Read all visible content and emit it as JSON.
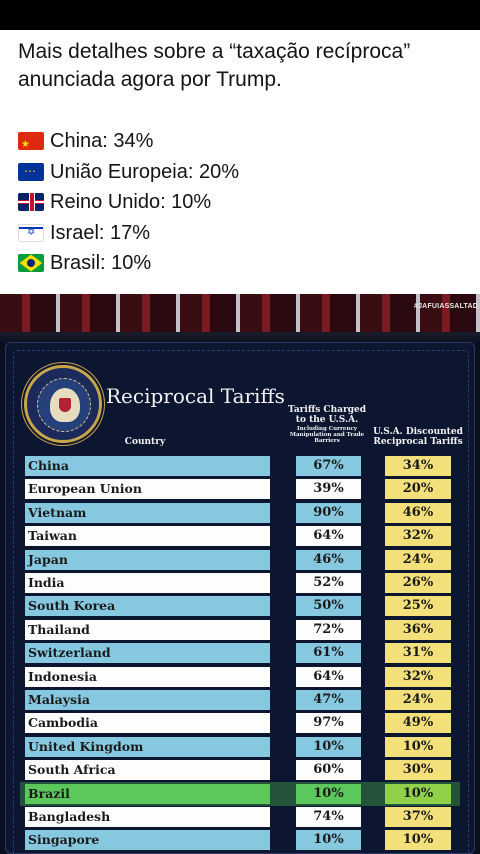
{
  "post": {
    "text": "Mais detalhes sobre a “taxação recíproca” anunciada agora por Trump.",
    "items": [
      {
        "flag": "china-flag-icon",
        "label": "China: 34%"
      },
      {
        "flag": "eu-flag-icon",
        "label": "União Europeia: 20%"
      },
      {
        "flag": "uk-flag-icon",
        "label": "Reino Unido: 10%"
      },
      {
        "flag": "israel-flag-icon",
        "label": "Israel: 17%"
      },
      {
        "flag": "brazil-flag-icon",
        "label": "Brasil: 10%"
      }
    ]
  },
  "video": {
    "watermark": "#JAFUIASSALTAD",
    "board": {
      "title": "Reciprocal Tariffs",
      "headers": {
        "country": "Country",
        "charged_main": "Tariffs Charged to the U.S.A.",
        "charged_sub": "Including Currency Manipulation and Trade Barriers",
        "discounted": "U.S.A. Discounted Reciprocal Tariffs"
      },
      "rows": [
        {
          "country": "China",
          "charged": "67%",
          "discounted": "34%"
        },
        {
          "country": "European Union",
          "charged": "39%",
          "discounted": "20%"
        },
        {
          "country": "Vietnam",
          "charged": "90%",
          "discounted": "46%"
        },
        {
          "country": "Taiwan",
          "charged": "64%",
          "discounted": "32%"
        },
        {
          "country": "Japan",
          "charged": "46%",
          "discounted": "24%"
        },
        {
          "country": "India",
          "charged": "52%",
          "discounted": "26%"
        },
        {
          "country": "South Korea",
          "charged": "50%",
          "discounted": "25%"
        },
        {
          "country": "Thailand",
          "charged": "72%",
          "discounted": "36%"
        },
        {
          "country": "Switzerland",
          "charged": "61%",
          "discounted": "31%"
        },
        {
          "country": "Indonesia",
          "charged": "64%",
          "discounted": "32%"
        },
        {
          "country": "Malaysia",
          "charged": "47%",
          "discounted": "24%"
        },
        {
          "country": "Cambodia",
          "charged": "97%",
          "discounted": "49%"
        },
        {
          "country": "United Kingdom",
          "charged": "10%",
          "discounted": "10%"
        },
        {
          "country": "South Africa",
          "charged": "60%",
          "discounted": "30%"
        },
        {
          "country": "Brazil",
          "charged": "10%",
          "discounted": "10%"
        },
        {
          "country": "Bangladesh",
          "charged": "74%",
          "discounted": "37%"
        },
        {
          "country": "Singapore",
          "charged": "10%",
          "discounted": "10%"
        }
      ]
    }
  }
}
